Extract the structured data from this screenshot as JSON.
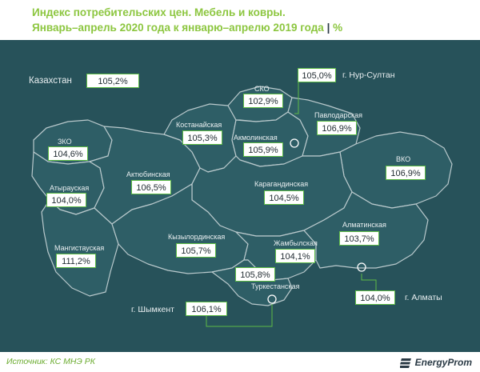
{
  "title": {
    "line1": "Индекс потребительских цен. Мебель и ковры.",
    "line2": "Январь–апрель 2020 года к январю–апрелю 2019 года",
    "separator": "|",
    "unit": "%"
  },
  "map": {
    "country": {
      "name": "Казахстан",
      "value": "105,2%"
    },
    "regions": {
      "zko": {
        "name": "ЗКО",
        "value": "104,6%"
      },
      "atyrau": {
        "name": "Атырауская",
        "value": "104,0%"
      },
      "mangistau": {
        "name": "Мангистауская",
        "value": "111,2%"
      },
      "aktobe": {
        "name": "Актюбинская",
        "value": "106,5%"
      },
      "kostanay": {
        "name": "Костанайская",
        "value": "105,3%"
      },
      "sko": {
        "name": "СКО",
        "value": "102,9%"
      },
      "akmola": {
        "name": "Акмолинская",
        "value": "105,9%"
      },
      "pavlodar": {
        "name": "Павлодарская",
        "value": "106,9%"
      },
      "vko": {
        "name": "ВКО",
        "value": "106,9%"
      },
      "karaganda": {
        "name": "Карагандинская",
        "value": "104,5%"
      },
      "kyzylorda": {
        "name": "Кызылординская",
        "value": "105,7%"
      },
      "zhambyl": {
        "name": "Жамбылская",
        "value": "104,1%"
      },
      "almaty_region": {
        "name": "Алматинская",
        "value": "103,7%"
      },
      "turkestan": {
        "name": "Туркестанская",
        "value": "105,8%"
      }
    },
    "cities": {
      "nursultan": {
        "name": "г. Нур-Султан",
        "value": "105,0%"
      },
      "shymkent": {
        "name": "г. Шымкент",
        "value": "106,1%"
      },
      "almaty": {
        "name": "г. Алматы",
        "value": "104,0%"
      }
    }
  },
  "footer": {
    "source": "Источник: КС МНЭ РК",
    "logo": "EnergyProm"
  },
  "colors": {
    "background": "#27525a",
    "region_fill": "#2e5e66",
    "border": "#b9c9cc",
    "accent": "#8cc63f",
    "leader": "#5dbb46"
  }
}
